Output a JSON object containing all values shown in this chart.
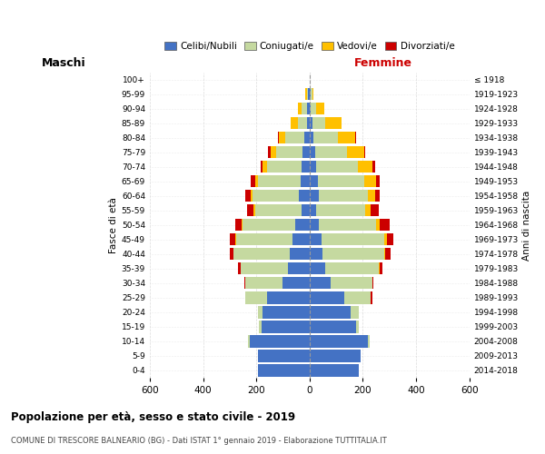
{
  "age_groups": [
    "0-4",
    "5-9",
    "10-14",
    "15-19",
    "20-24",
    "25-29",
    "30-34",
    "35-39",
    "40-44",
    "45-49",
    "50-54",
    "55-59",
    "60-64",
    "65-69",
    "70-74",
    "75-79",
    "80-84",
    "85-89",
    "90-94",
    "95-99",
    "100+"
  ],
  "birth_years": [
    "2014-2018",
    "2009-2013",
    "2004-2008",
    "1999-2003",
    "1994-1998",
    "1989-1993",
    "1984-1988",
    "1979-1983",
    "1974-1978",
    "1969-1973",
    "1964-1968",
    "1959-1963",
    "1954-1958",
    "1949-1953",
    "1944-1948",
    "1939-1943",
    "1934-1938",
    "1929-1933",
    "1924-1928",
    "1919-1923",
    "≤ 1918"
  ],
  "males": {
    "celibe": [
      195,
      195,
      225,
      180,
      175,
      160,
      100,
      80,
      75,
      65,
      55,
      30,
      40,
      35,
      30,
      25,
      20,
      10,
      10,
      5,
      0
    ],
    "coniugato": [
      0,
      0,
      5,
      10,
      20,
      80,
      140,
      180,
      210,
      210,
      195,
      175,
      175,
      160,
      130,
      100,
      70,
      35,
      20,
      5,
      0
    ],
    "vedovo": [
      0,
      0,
      0,
      0,
      0,
      0,
      0,
      0,
      0,
      5,
      5,
      5,
      5,
      10,
      15,
      20,
      25,
      25,
      15,
      5,
      0
    ],
    "divorziato": [
      0,
      0,
      0,
      0,
      0,
      0,
      5,
      10,
      15,
      20,
      25,
      25,
      20,
      15,
      10,
      10,
      5,
      0,
      0,
      0,
      0
    ]
  },
  "females": {
    "nubile": [
      185,
      190,
      220,
      175,
      155,
      130,
      80,
      60,
      50,
      45,
      35,
      25,
      35,
      30,
      25,
      20,
      15,
      10,
      5,
      5,
      0
    ],
    "coniugata": [
      0,
      0,
      5,
      10,
      30,
      100,
      155,
      200,
      230,
      235,
      215,
      185,
      185,
      175,
      155,
      120,
      90,
      50,
      20,
      5,
      0
    ],
    "vedova": [
      0,
      0,
      0,
      0,
      0,
      0,
      0,
      5,
      5,
      10,
      15,
      20,
      25,
      45,
      55,
      65,
      65,
      60,
      30,
      5,
      2
    ],
    "divorziata": [
      0,
      0,
      0,
      0,
      0,
      5,
      5,
      10,
      20,
      25,
      35,
      30,
      20,
      15,
      10,
      5,
      5,
      0,
      0,
      0,
      0
    ]
  },
  "color_celibe": "#4472c4",
  "color_coniugato": "#c5d9a0",
  "color_vedovo": "#ffc000",
  "color_divorziato": "#cc0000",
  "title1": "Popolazione per età, sesso e stato civile - 2019",
  "title2": "COMUNE DI TRESCORE BALNEARIO (BG) - Dati ISTAT 1° gennaio 2019 - Elaborazione TUTTITALIA.IT",
  "xlabel_left": "Maschi",
  "xlabel_right": "Femmine",
  "ylabel_left": "Fasce di età",
  "ylabel_right": "Anni di nascita",
  "legend_labels": [
    "Celibi/Nubili",
    "Coniugati/e",
    "Vedovi/e",
    "Divorziati/e"
  ],
  "xlim": 600,
  "background_color": "#ffffff",
  "grid_color": "#cccccc"
}
